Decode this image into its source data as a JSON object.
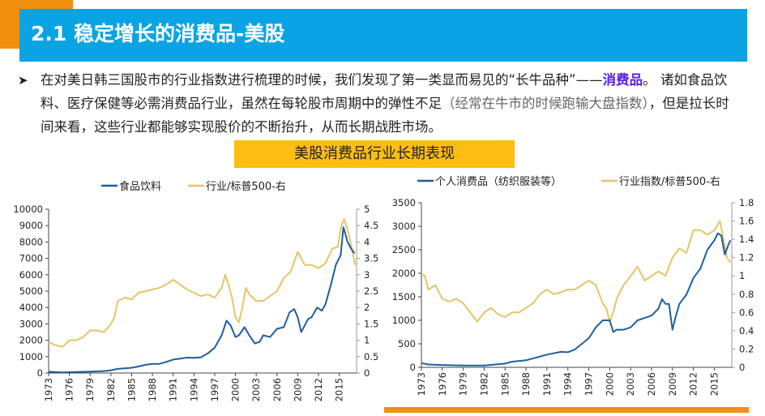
{
  "header": {
    "title": "2.1 稳定增长的消费品-美股",
    "accent_color": "#f0900f",
    "title_bar_color": "#0aa4e4"
  },
  "body": {
    "bullet_icon": "arrow-right",
    "paragraph_part1": "在对美日韩三国股市的行业指数进行梳理的时候，我们发现了第一类显而易见的“长牛品种”——",
    "paragraph_highlight": "消费品",
    "paragraph_part2": "。 诸如食品饮料、医疗保健等必需消费品行业，虽然在每轮股市周期中的弹性不足",
    "paragraph_part3": "（经常在牛市的时候跑输大盘指数）",
    "paragraph_part4": "，但是拉长时间来看，这些行业都能够实现股价的不断抬升，从而长期战胜市场。",
    "highlight_color": "#5b1ee0"
  },
  "banner": {
    "label": "美股消费品行业长期表现",
    "color": "#fdbd13"
  },
  "chart_data": [
    {
      "type": "line",
      "title": "",
      "legend": [
        "食品饮料",
        "行业/标普500-右"
      ],
      "legend_position": "top",
      "x_ticks": [
        "1973",
        "1976",
        "1979",
        "1982",
        "1985",
        "1988",
        "1991",
        "1994",
        "1997",
        "2000",
        "2003",
        "2006",
        "2009",
        "2012",
        "2015"
      ],
      "xlim": [
        1973,
        2017.5
      ],
      "ylim_left": [
        0,
        10000
      ],
      "y_ticks_left": [
        "0",
        "1000",
        "2000",
        "3000",
        "4000",
        "5000",
        "6000",
        "7000",
        "8000",
        "9000",
        "10000"
      ],
      "ylim_right": [
        0,
        5
      ],
      "y_ticks_right": [
        "0",
        "0.5",
        "1",
        "1.5",
        "2",
        "2.5",
        "3",
        "3.5",
        "4",
        "4.5",
        "5"
      ],
      "series": [
        {
          "name": "食品饮料",
          "axis": "left",
          "color": "#1f5fa0",
          "x": [
            1973,
            1975,
            1977,
            1979,
            1981,
            1982,
            1983,
            1984,
            1985,
            1986,
            1987,
            1988,
            1989,
            1990,
            1991,
            1992,
            1993,
            1994,
            1995,
            1996,
            1997,
            1998,
            1998.7,
            1999.3,
            2000,
            2000.5,
            2001.3,
            2002,
            2002.8,
            2003.5,
            2004,
            2005,
            2006,
            2007,
            2007.8,
            2008.5,
            2009,
            2009.5,
            2010.5,
            2011,
            2011.8,
            2012.5,
            2013,
            2013.8,
            2014.5,
            2015.2,
            2015.6,
            2016.2,
            2016.7,
            2017.2
          ],
          "y": [
            80,
            40,
            60,
            90,
            120,
            170,
            250,
            280,
            320,
            400,
            500,
            560,
            560,
            680,
            820,
            880,
            940,
            930,
            960,
            1200,
            1550,
            2300,
            3200,
            2900,
            2200,
            2300,
            2800,
            2300,
            1800,
            1900,
            2300,
            2200,
            2700,
            2800,
            3700,
            3900,
            3400,
            2500,
            3300,
            3400,
            4000,
            3800,
            4200,
            5400,
            6600,
            7200,
            8900,
            8000,
            7600,
            7300
          ]
        },
        {
          "name": "行业/标普500-右",
          "axis": "right",
          "color": "#e6c568",
          "x": [
            1973,
            1974,
            1975,
            1976,
            1977,
            1978,
            1979,
            1980,
            1981,
            1982,
            1982.5,
            1983,
            1984,
            1985,
            1986,
            1987,
            1988,
            1989,
            1990,
            1991,
            1992,
            1993,
            1994,
            1995,
            1996,
            1997,
            1998,
            1998.5,
            1999,
            1999.5,
            2000,
            2000.5,
            2001,
            2001.5,
            2002,
            2003,
            2004,
            2005,
            2006,
            2006.5,
            2007,
            2008,
            2009,
            2009.5,
            2010,
            2011,
            2012,
            2013,
            2014,
            2014.8,
            2015.3,
            2015.7,
            2016.3,
            2017,
            2017.3
          ],
          "y": [
            0.95,
            0.85,
            0.8,
            1.0,
            1.0,
            1.1,
            1.3,
            1.3,
            1.25,
            1.5,
            1.7,
            2.2,
            2.3,
            2.25,
            2.45,
            2.5,
            2.55,
            2.6,
            2.7,
            2.85,
            2.7,
            2.55,
            2.45,
            2.35,
            2.4,
            2.3,
            2.6,
            3.0,
            2.7,
            2.3,
            1.7,
            1.55,
            2.0,
            2.6,
            2.4,
            2.2,
            2.2,
            2.35,
            2.5,
            2.7,
            2.9,
            3.1,
            3.7,
            3.5,
            3.3,
            3.3,
            3.2,
            3.35,
            3.8,
            3.85,
            4.5,
            4.7,
            4.3,
            3.6,
            3.3
          ]
        }
      ]
    },
    {
      "type": "line",
      "title": "",
      "legend": [
        "个人消费品（纺织服装等）",
        "行业指数/标普500-右"
      ],
      "legend_position": "top",
      "x_ticks": [
        "1973",
        "1976",
        "1979",
        "1982",
        "1985",
        "1988",
        "1991",
        "1994",
        "1997",
        "2000",
        "2003",
        "2006",
        "2009",
        "2012",
        "2015"
      ],
      "xlim": [
        1973,
        2017.5
      ],
      "ylim_left": [
        0,
        3500
      ],
      "y_ticks_left": [
        "0",
        "500",
        "1000",
        "1500",
        "2000",
        "2500",
        "3000",
        "3500"
      ],
      "ylim_right": [
        0,
        1.8
      ],
      "y_ticks_right": [
        "0",
        "0.2",
        "0.4",
        "0.6",
        "0.8",
        "1",
        "1.2",
        "1.4",
        "1.6",
        "1.8"
      ],
      "series": [
        {
          "name": "个人消费品（纺织服装等）",
          "axis": "left",
          "color": "#1f5fa0",
          "x": [
            1973,
            1974,
            1976,
            1979,
            1982,
            1985,
            1986,
            1988,
            1990,
            1991,
            1993,
            1994,
            1995,
            1996,
            1997,
            1998,
            1999,
            2000,
            2000.5,
            2001,
            2002,
            2003,
            2004,
            2005,
            2006,
            2007,
            2007.5,
            2008,
            2008.5,
            2009,
            2009.5,
            2010,
            2011,
            2012,
            2013,
            2014,
            2015,
            2015.5,
            2016,
            2016.5,
            2017,
            2017.3
          ],
          "y": [
            90,
            60,
            50,
            40,
            40,
            80,
            120,
            150,
            230,
            270,
            330,
            320,
            380,
            500,
            620,
            850,
            1000,
            1000,
            750,
            800,
            800,
            850,
            1000,
            1050,
            1100,
            1250,
            1450,
            1350,
            1350,
            800,
            1100,
            1350,
            1550,
            1900,
            2100,
            2500,
            2700,
            2850,
            2800,
            2400,
            2600,
            2700
          ]
        },
        {
          "name": "行业指数/标普500-右",
          "axis": "right",
          "color": "#e6c568",
          "x": [
            1973,
            1973.5,
            1974,
            1975,
            1976,
            1977,
            1978,
            1979,
            1980,
            1981,
            1982,
            1983,
            1984,
            1985,
            1986,
            1987,
            1988,
            1989,
            1990,
            1991,
            1992,
            1993,
            1994,
            1995,
            1996,
            1997,
            1998,
            1998.5,
            1999,
            1999.5,
            2000,
            2000.5,
            2001,
            2002,
            2003,
            2004,
            2005,
            2006,
            2007,
            2008,
            2009,
            2009.5,
            2010,
            2011,
            2012,
            2013,
            2014,
            2015,
            2015.8,
            2016.3,
            2016.8,
            2017.3
          ],
          "y": [
            1.02,
            1.0,
            0.85,
            0.9,
            0.75,
            0.72,
            0.75,
            0.7,
            0.6,
            0.5,
            0.6,
            0.65,
            0.58,
            0.55,
            0.6,
            0.6,
            0.65,
            0.7,
            0.8,
            0.85,
            0.8,
            0.82,
            0.85,
            0.85,
            0.9,
            0.95,
            0.9,
            0.8,
            0.7,
            0.65,
            0.5,
            0.6,
            0.75,
            0.9,
            1.0,
            1.1,
            0.95,
            1.0,
            1.05,
            1.0,
            1.2,
            1.25,
            1.3,
            1.25,
            1.5,
            1.5,
            1.45,
            1.5,
            1.6,
            1.4,
            1.2,
            1.15
          ]
        }
      ]
    }
  ]
}
